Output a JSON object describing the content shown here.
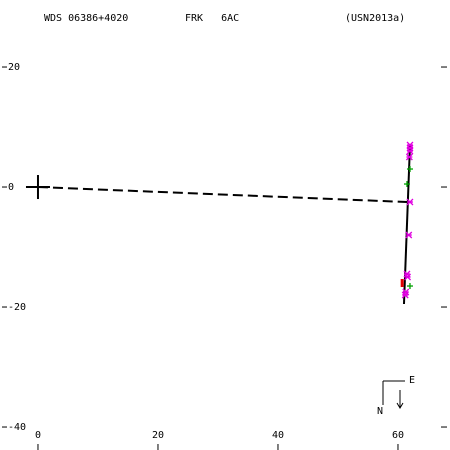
{
  "chart_data": {
    "type": "scatter",
    "title": "WDS 06386+4020",
    "subtitle": "FRK   6AC",
    "reference": "(USN2013a)",
    "xlim": [
      -6.33,
      68.67
    ],
    "ylim": [
      -43.83,
      31.17
    ],
    "xticks": [
      0,
      20,
      40,
      60
    ],
    "yticks": [
      20,
      0,
      -20,
      -40
    ],
    "compass": {
      "east": "E",
      "north": "N"
    },
    "series": [
      {
        "marker": "line-dashed",
        "color": "#000000",
        "x": [
          0,
          61.5
        ],
        "values": [
          0,
          -2.5
        ]
      },
      {
        "marker": "line-solid",
        "color": "#000000",
        "x": [
          62,
          61
        ],
        "values": [
          7,
          -19.5
        ]
      },
      {
        "marker": "cross",
        "color": "#000000",
        "x": [
          0
        ],
        "values": [
          0
        ]
      },
      {
        "marker": "asterisk",
        "color": "#e000e0",
        "x": [
          62,
          62,
          62,
          61.9,
          62,
          61.8,
          61.5,
          61.6,
          61.3,
          61.2
        ],
        "values": [
          7,
          6.5,
          6,
          5,
          -2.5,
          -8,
          -14.5,
          -15,
          -17.5,
          -18
        ]
      },
      {
        "marker": "plus",
        "color": "#00a000",
        "x": [
          61.5,
          62,
          62
        ],
        "values": [
          0.5,
          3,
          -16.5
        ]
      },
      {
        "marker": "bar",
        "color": "#e00000",
        "x": [
          60.7
        ],
        "values": [
          -16
        ]
      }
    ]
  }
}
